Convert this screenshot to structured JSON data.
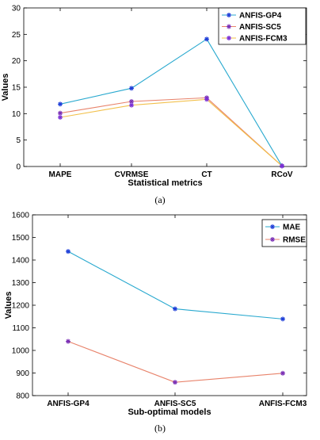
{
  "chart_data": [
    {
      "type": "line",
      "caption": "(a)",
      "xlabel": "Statistical metrics",
      "ylabel": "Values",
      "categories": [
        "MAPE",
        "CVRMSE",
        "CT",
        "RCoV"
      ],
      "ylim": [
        0,
        30
      ],
      "yticks": [
        0,
        5,
        10,
        15,
        20,
        25,
        30
      ],
      "grid": false,
      "legend_position": "top-right",
      "series": [
        {
          "name": "ANFIS-GP4",
          "values": [
            11.8,
            14.8,
            24.1,
            0.1
          ],
          "color": "#29a9cf",
          "marker_color": "#1f3fd8"
        },
        {
          "name": "ANFIS-SC5",
          "values": [
            10.1,
            12.3,
            13.0,
            0.1
          ],
          "color": "#e8836b",
          "marker_color": "#7a2fb5"
        },
        {
          "name": "ANFIS-FCM3",
          "values": [
            9.3,
            11.6,
            12.7,
            0.1
          ],
          "color": "#f2c04b",
          "marker_color": "#7a2fd5"
        }
      ]
    },
    {
      "type": "line",
      "caption": "(b)",
      "xlabel": "Sub-optimal models",
      "ylabel": "Values",
      "categories": [
        "ANFIS-GP4",
        "ANFIS-SC5",
        "ANFIS-FCM3"
      ],
      "ylim": [
        800,
        1600
      ],
      "yticks": [
        800,
        900,
        1000,
        1100,
        1200,
        1300,
        1400,
        1500,
        1600
      ],
      "grid": false,
      "legend_position": "top-right",
      "series": [
        {
          "name": "MAE",
          "values": [
            1438,
            1184,
            1139
          ],
          "color": "#29a9cf",
          "marker_color": "#1f3fd8"
        },
        {
          "name": "RMSE",
          "values": [
            1040,
            859,
            899
          ],
          "color": "#e8836b",
          "marker_color": "#7a2fb5"
        }
      ]
    }
  ]
}
